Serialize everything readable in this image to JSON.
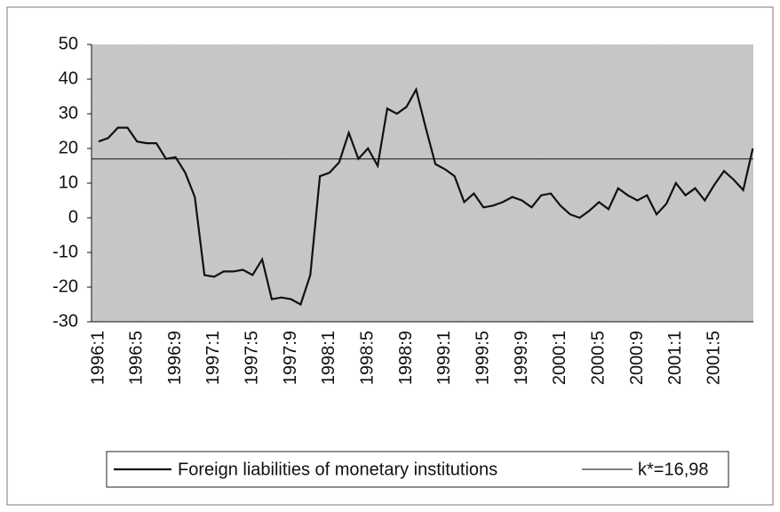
{
  "chart_data": {
    "type": "line",
    "categories": [
      "1996:1",
      null,
      null,
      null,
      "1996:5",
      null,
      null,
      null,
      "1996:9",
      null,
      null,
      null,
      "1997:1",
      null,
      null,
      null,
      "1997:5",
      null,
      null,
      null,
      "1997:9",
      null,
      null,
      null,
      "1998:1",
      null,
      null,
      null,
      "1998:5",
      null,
      null,
      null,
      "1998:9",
      null,
      null,
      null,
      "1999:1",
      null,
      null,
      null,
      "1999:5",
      null,
      null,
      null,
      "1999:9",
      null,
      null,
      null,
      "2000:1",
      null,
      null,
      null,
      "2000:5",
      null,
      null,
      null,
      "2000:9",
      null,
      null,
      null,
      "2001:1",
      null,
      null,
      null,
      "2001:5",
      null,
      null,
      null,
      null
    ],
    "series": [
      {
        "name": "Foreign liabilities of monetary institutions",
        "color": "#111111",
        "values": [
          22,
          23,
          26,
          26,
          22,
          21.5,
          21.5,
          17,
          17.5,
          13,
          6,
          -16.5,
          -17,
          -15.5,
          -15.5,
          -15,
          -16.5,
          -12,
          -23.5,
          -23,
          -23.5,
          -25,
          -16.5,
          12,
          13,
          16,
          24.5,
          17,
          20,
          15,
          31.5,
          30,
          32,
          37,
          26,
          15.5,
          14,
          12,
          4.5,
          7,
          3,
          3.5,
          4.5,
          6,
          5,
          3,
          6.5,
          7,
          3.5,
          1,
          0,
          2,
          4.5,
          2.5,
          8.5,
          6.5,
          5,
          6.5,
          1,
          4,
          10,
          6.5,
          8.5,
          5,
          9.5,
          13.5,
          11,
          8,
          20
        ]
      }
    ],
    "reference": {
      "name": "k*=16,98",
      "value": 16.98,
      "color": "#333333"
    },
    "ylim": [
      -30,
      50
    ],
    "yticks": [
      -30,
      -20,
      -10,
      0,
      10,
      20,
      30,
      40,
      50
    ],
    "legend": "bottom"
  }
}
